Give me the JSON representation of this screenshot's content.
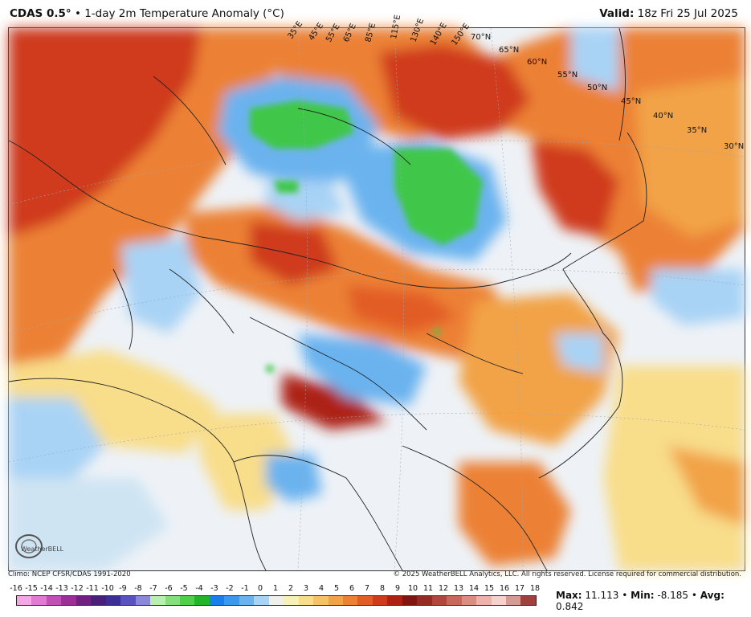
{
  "header": {
    "model": "CDAS 0.5°",
    "product": "• 1-day 2m Temperature Anomaly (°C)",
    "valid_label": "Valid:",
    "valid_value": "18z Fri 25 Jul 2025"
  },
  "footer": {
    "climo": "Climo: NCEP CFSR/CDAS 1991-2020",
    "copyright": "© 2025 WeatherBELL Analytics, LLC. All rights reserved. License required for commercial distribution.",
    "logo_text": "WeatherBELL"
  },
  "stats": {
    "max_label": "Max:",
    "max_value": "11.113",
    "min_label": "Min:",
    "min_value": "-8.185",
    "avg_label": "Avg:",
    "avg_value": "0.842"
  },
  "colorbar": {
    "labels": [
      "-16",
      "-15",
      "-14",
      "-13",
      "-12",
      "-11",
      "-10",
      "-9",
      "-8",
      "-7",
      "-6",
      "-5",
      "-4",
      "-3",
      "-2",
      "-1",
      "0",
      "1",
      "2",
      "3",
      "4",
      "5",
      "6",
      "7",
      "8",
      "9",
      "10",
      "11",
      "12",
      "13",
      "14",
      "15",
      "16",
      "17",
      "18"
    ],
    "colors": [
      "#f4a6e6",
      "#e27ad4",
      "#c24fb6",
      "#9c2f96",
      "#702080",
      "#4a1f7a",
      "#3b2f96",
      "#5a52c0",
      "#8b88d8",
      "#b9f0b0",
      "#86df7e",
      "#4fcf4a",
      "#22b52a",
      "#1a7fe8",
      "#3a99ec",
      "#6ab3ef",
      "#a9d3f5",
      "#f0f0ea",
      "#f7f1b8",
      "#f8dd8a",
      "#f6c266",
      "#f2a347",
      "#ec8134",
      "#e25c26",
      "#cf3a1b",
      "#ad2013",
      "#7f1411",
      "#952a22",
      "#b0463c",
      "#c8675c",
      "#dc8d82",
      "#ecb3aa",
      "#f6d2cd",
      "#d69a94",
      "#a0403c"
    ],
    "colors_note": "continuous ramp"
  },
  "map_labels": {
    "longitudes": [
      "35°E",
      "45°E",
      "55°E",
      "65°E",
      "85°E",
      "115°E",
      "130°E",
      "140°E",
      "150°E"
    ],
    "latitudes": [
      "70°N",
      "65°N",
      "60°N",
      "55°N",
      "50°N",
      "45°N",
      "40°N",
      "35°N",
      "30°N"
    ]
  },
  "colors": {
    "warm_strong": "#c43a1c",
    "warm": "#ec8134",
    "warm_light": "#f8dd8a",
    "neutral": "#eef2f7",
    "cool_light": "#a9d3f5",
    "cool": "#3a99ec",
    "cold": "#3fc74a"
  }
}
